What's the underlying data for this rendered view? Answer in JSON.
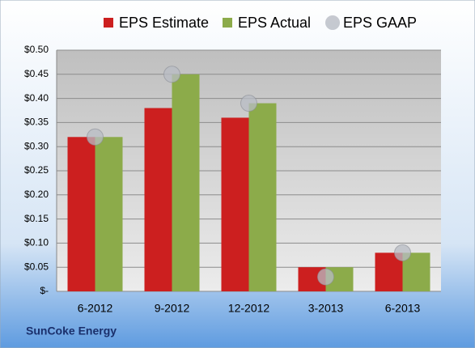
{
  "chart_data": {
    "type": "bar",
    "categories": [
      "6-2012",
      "9-2012",
      "12-2012",
      "3-2013",
      "6-2013"
    ],
    "series": [
      {
        "name": "EPS Estimate",
        "color": "#cc1f1f",
        "values": [
          0.32,
          0.38,
          0.36,
          0.05,
          0.08
        ]
      },
      {
        "name": "EPS Actual",
        "color": "#8cab4a",
        "values": [
          0.32,
          0.45,
          0.39,
          0.05,
          0.08
        ]
      },
      {
        "name": "EPS GAAP",
        "color": "#b8bcc4",
        "marker": "circle",
        "values": [
          0.32,
          0.45,
          0.39,
          0.03,
          0.08
        ]
      }
    ],
    "ylim": [
      0,
      0.5
    ],
    "yticks": [
      {
        "value": 0,
        "label": "$-"
      },
      {
        "value": 0.05,
        "label": "$0.05"
      },
      {
        "value": 0.1,
        "label": "$0.10"
      },
      {
        "value": 0.15,
        "label": "$0.15"
      },
      {
        "value": 0.2,
        "label": "$0.20"
      },
      {
        "value": 0.25,
        "label": "$0.25"
      },
      {
        "value": 0.3,
        "label": "$0.30"
      },
      {
        "value": 0.35,
        "label": "$0.35"
      },
      {
        "value": 0.4,
        "label": "$0.40"
      },
      {
        "value": 0.45,
        "label": "$0.45"
      },
      {
        "value": 0.5,
        "label": "$0.50"
      }
    ],
    "grid": true,
    "legend": "top",
    "source": "SunCoke Energy"
  }
}
